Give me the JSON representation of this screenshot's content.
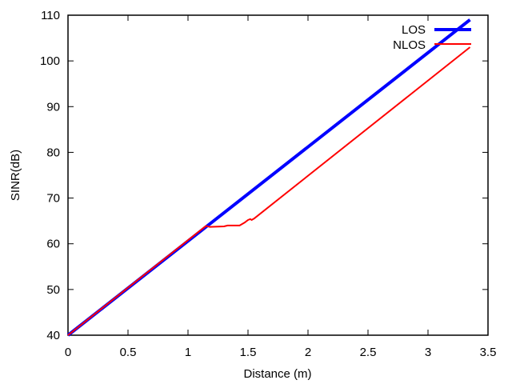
{
  "chart_data": {
    "type": "line",
    "title": "",
    "xlabel": "Distance (m)",
    "ylabel": "SINR(dB)",
    "xlim": [
      0,
      3.5
    ],
    "ylim": [
      40,
      110
    ],
    "xticks": [
      0,
      0.5,
      1,
      1.5,
      2,
      2.5,
      3,
      3.5
    ],
    "xtick_labels": [
      "0",
      "0.5",
      "1",
      "1.5",
      "2",
      "2.5",
      "3",
      "3.5"
    ],
    "yticks": [
      40,
      50,
      60,
      70,
      80,
      90,
      100,
      110
    ],
    "ytick_labels": [
      "40",
      "50",
      "60",
      "70",
      "80",
      "90",
      "100",
      "110"
    ],
    "grid": false,
    "legend_position": "top-right",
    "series": [
      {
        "name": "LOS",
        "color": "#0000ff",
        "x": [
          0,
          3.35
        ],
        "y": [
          40,
          109
        ]
      },
      {
        "name": "NLOS",
        "color": "#ff0000",
        "x": [
          0,
          1.15,
          1.18,
          1.3,
          1.33,
          1.43,
          1.47,
          1.5,
          1.52,
          1.53,
          1.55,
          3.35
        ],
        "y": [
          40,
          63.9,
          63.7,
          63.8,
          64.0,
          64.0,
          64.6,
          65.2,
          65.4,
          65.2,
          65.5,
          103
        ]
      }
    ]
  }
}
